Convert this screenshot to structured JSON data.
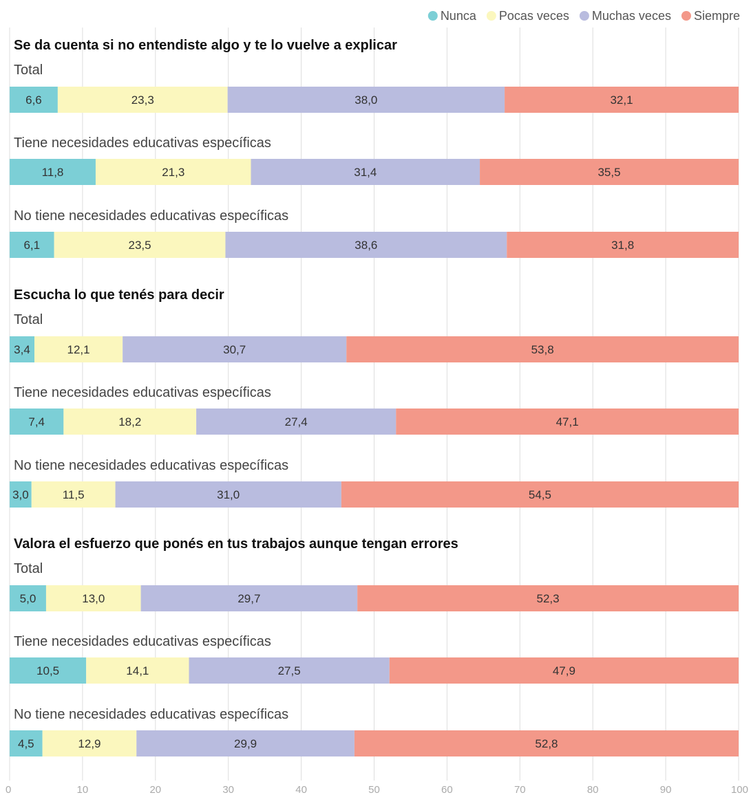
{
  "chart_data": {
    "type": "bar",
    "orientation": "horizontal",
    "stacked": true,
    "legend": {
      "placement": "top-right",
      "entries": [
        {
          "name": "Nunca",
          "color": "#7ccfd6"
        },
        {
          "name": "Pocas veces",
          "color": "#fbf7be"
        },
        {
          "name": "Muchas veces",
          "color": "#b9bcdf"
        },
        {
          "name": "Siempre",
          "color": "#f39889"
        }
      ]
    },
    "xlim": [
      0,
      100
    ],
    "xticks": [
      0,
      10,
      20,
      30,
      40,
      50,
      60,
      70,
      80,
      90,
      100
    ],
    "grid": true,
    "groups": [
      {
        "title": "Se da cuenta si no entendiste algo y te lo vuelve a explicar",
        "rows": [
          {
            "label": "Total",
            "values": [
              6.6,
              23.3,
              38.0,
              32.1
            ],
            "labels": [
              "6,6",
              "23,3",
              "38,0",
              "32,1"
            ]
          },
          {
            "label": "Tiene necesidades educativas específicas",
            "values": [
              11.8,
              21.3,
              31.4,
              35.5
            ],
            "labels": [
              "11,8",
              "21,3",
              "31,4",
              "35,5"
            ]
          },
          {
            "label": "No tiene necesidades educativas específicas",
            "values": [
              6.1,
              23.5,
              38.6,
              31.8
            ],
            "labels": [
              "6,1",
              "23,5",
              "38,6",
              "31,8"
            ]
          }
        ]
      },
      {
        "title": "Escucha lo que tenés para decir",
        "rows": [
          {
            "label": "Total",
            "values": [
              3.4,
              12.1,
              30.7,
              53.8
            ],
            "labels": [
              "3,4",
              "12,1",
              "30,7",
              "53,8"
            ]
          },
          {
            "label": "Tiene necesidades educativas específicas",
            "values": [
              7.4,
              18.2,
              27.4,
              47.1
            ],
            "labels": [
              "7,4",
              "18,2",
              "27,4",
              "47,1"
            ]
          },
          {
            "label": "No tiene necesidades educativas específicas",
            "values": [
              3.0,
              11.5,
              31.0,
              54.5
            ],
            "labels": [
              "3,0",
              "11,5",
              "31,0",
              "54,5"
            ]
          }
        ]
      },
      {
        "title": "Valora el esfuerzo que ponés en tus trabajos aunque tengan errores",
        "rows": [
          {
            "label": "Total",
            "values": [
              5.0,
              13.0,
              29.7,
              52.3
            ],
            "labels": [
              "5,0",
              "13,0",
              "29,7",
              "52,3"
            ]
          },
          {
            "label": "Tiene necesidades educativas específicas",
            "values": [
              10.5,
              14.1,
              27.5,
              47.9
            ],
            "labels": [
              "10,5",
              "14,1",
              "27,5",
              "47,9"
            ]
          },
          {
            "label": "No tiene necesidades educativas específicas",
            "values": [
              4.5,
              12.9,
              29.9,
              52.8
            ],
            "labels": [
              "4,5",
              "12,9",
              "29,9",
              "52,8"
            ]
          }
        ]
      }
    ]
  }
}
